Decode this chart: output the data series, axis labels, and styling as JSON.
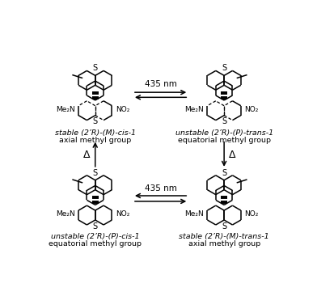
{
  "background_color": "#ffffff",
  "top_left_label_line1": "stable (2’R)-(​M)-cis-​1",
  "top_left_label_line2": "axial methyl group",
  "top_right_label_line1": "unstable (2’R)-(​P)-trans-​1",
  "top_right_label_line2": "equatorial methyl group",
  "bottom_left_label_line1": "unstable (2’R)-(​P)-cis-​1",
  "bottom_left_label_line2": "equatorial methyl group",
  "bottom_right_label_line1": "stable (2’R)-(​M)-trans-​1",
  "bottom_right_label_line2": "axial methyl group",
  "top_arrow_label": "435 nm",
  "bottom_arrow_label": "435 nm",
  "left_arrow_label": "Δ",
  "right_arrow_label": "Δ",
  "fig_width": 3.92,
  "fig_height": 3.61,
  "dpi": 100
}
